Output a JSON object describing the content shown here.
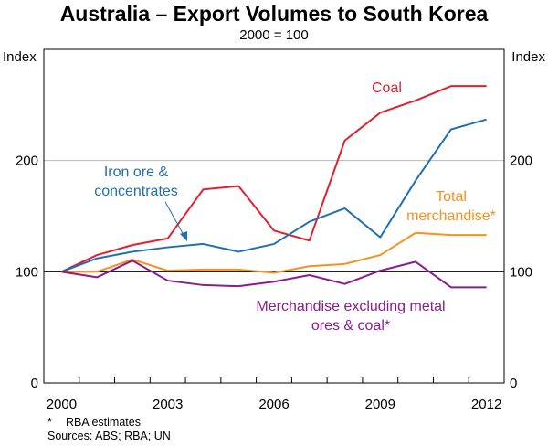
{
  "title": "Australia – Export Volumes to South Korea",
  "subtitle": "2000 = 100",
  "footnotes": {
    "star_symbol": "*",
    "estimates": "RBA estimates",
    "sources": "Sources: ABS; RBA; UN"
  },
  "chart_data": {
    "type": "line",
    "ylabel_left": "Index",
    "ylabel_right": "Index",
    "ylim": [
      0,
      300
    ],
    "yticks": [
      0,
      100,
      200
    ],
    "xlim": [
      2000,
      2013
    ],
    "xticks": [
      2000,
      2003,
      2006,
      2009,
      2012
    ],
    "grid": true,
    "x": [
      2000,
      2001,
      2002,
      2003,
      2004,
      2005,
      2006,
      2007,
      2008,
      2009,
      2010,
      2011,
      2012
    ],
    "series": [
      {
        "name": "Coal",
        "color": "#e2202e",
        "values": [
          100,
          115,
          124,
          130,
          174,
          177,
          137,
          128,
          218,
          243,
          254,
          267,
          267
        ]
      },
      {
        "name": "Iron ore & concentrates",
        "color": "#1f6fb5",
        "values": [
          100,
          112,
          118,
          122,
          125,
          118,
          125,
          145,
          157,
          131,
          182,
          228,
          237
        ]
      },
      {
        "name": "Total merchandise*",
        "color": "#f7921e",
        "values": [
          100,
          100,
          111,
          101,
          102,
          102,
          99,
          105,
          107,
          115,
          135,
          133,
          133
        ]
      },
      {
        "name": "Merchandise excluding metal ores & coal*",
        "color": "#8b1c8e",
        "values": [
          100,
          95,
          110,
          92,
          88,
          87,
          91,
          97,
          89,
          101,
          109,
          86,
          86
        ]
      }
    ],
    "labels": {
      "coal": "Coal",
      "iron_1": "Iron ore &",
      "iron_2": "concentrates",
      "total_1": "Total",
      "total_2": "merchandise*",
      "merch_1": "Merchandise excluding metal",
      "merch_2": "ores & coal*"
    }
  }
}
